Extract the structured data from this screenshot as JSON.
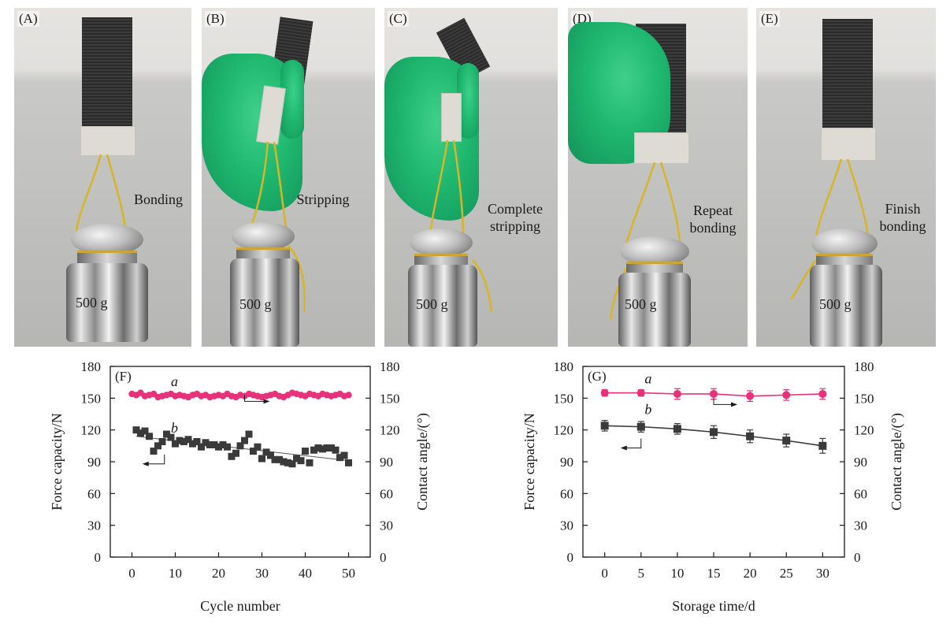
{
  "panels": [
    {
      "tag": "(A)",
      "caption": "Bonding",
      "mass": "500 g"
    },
    {
      "tag": "(B)",
      "caption": "Stripping",
      "mass": "500 g"
    },
    {
      "tag": "(C)",
      "caption": "Complete stripping",
      "mass": "500 g"
    },
    {
      "tag": "(D)",
      "caption": "Repeat bonding",
      "mass": "500 g"
    },
    {
      "tag": "(E)",
      "caption": "Finish bonding",
      "mass": "500 g"
    }
  ],
  "colors": {
    "series_a": "#e8317a",
    "series_b": "#3a3a3a",
    "glove": "#22b672",
    "string": "#d8b527"
  },
  "chart_data": [
    {
      "type": "scatter",
      "tag": "(F)",
      "xlabel": "Cycle number",
      "ylabel": "Force capacity/N",
      "y2label": "Contact angle/(°)",
      "xlim": [
        -5,
        55
      ],
      "ylim": [
        0,
        180
      ],
      "y2lim": [
        0,
        180
      ],
      "xticks": [
        0,
        10,
        20,
        30,
        40,
        50
      ],
      "yticks": [
        0,
        30,
        60,
        90,
        120,
        150,
        180
      ],
      "series": [
        {
          "name": "a",
          "axis": "right",
          "marker": "circle",
          "x": [
            0,
            1,
            2,
            3,
            4,
            5,
            6,
            7,
            8,
            9,
            10,
            11,
            12,
            13,
            14,
            15,
            16,
            17,
            18,
            19,
            20,
            21,
            22,
            23,
            24,
            25,
            26,
            27,
            28,
            29,
            30,
            31,
            32,
            33,
            34,
            35,
            36,
            37,
            38,
            39,
            40,
            41,
            42,
            43,
            44,
            45,
            46,
            47,
            48,
            49,
            50
          ],
          "y": [
            154,
            153,
            155,
            152,
            153,
            154,
            151,
            152,
            153,
            154,
            152,
            153,
            152,
            151,
            153,
            154,
            152,
            153,
            151,
            152,
            153,
            152,
            154,
            152,
            151,
            153,
            152,
            154,
            153,
            152,
            151,
            152,
            153,
            154,
            152,
            151,
            153,
            155,
            154,
            153,
            152,
            154,
            153,
            152,
            154,
            153,
            152,
            153,
            154,
            152,
            153
          ]
        },
        {
          "name": "b",
          "axis": "left",
          "marker": "square",
          "x": [
            1,
            2,
            3,
            4,
            5,
            6,
            7,
            8,
            9,
            10,
            11,
            12,
            13,
            14,
            15,
            16,
            17,
            18,
            19,
            20,
            21,
            22,
            23,
            24,
            25,
            26,
            27,
            28,
            29,
            30,
            31,
            32,
            33,
            34,
            35,
            36,
            37,
            38,
            39,
            40,
            41,
            42,
            43,
            44,
            45,
            46,
            47,
            48,
            49,
            50
          ],
          "y": [
            120,
            117,
            119,
            114,
            100,
            105,
            109,
            116,
            113,
            107,
            110,
            109,
            111,
            107,
            109,
            104,
            108,
            106,
            106,
            104,
            106,
            104,
            95,
            98,
            105,
            110,
            116,
            100,
            104,
            93,
            99,
            96,
            92,
            92,
            90,
            89,
            88,
            93,
            91,
            100,
            89,
            101,
            103,
            102,
            103,
            103,
            101,
            94,
            96,
            89
          ],
          "fit": {
            "x": [
              1,
              50
            ],
            "y": [
              114,
              91
            ]
          }
        }
      ],
      "annotations": [
        {
          "text": "a",
          "series": "a"
        },
        {
          "text": "b",
          "series": "b"
        }
      ]
    },
    {
      "type": "line",
      "tag": "(G)",
      "xlabel": "Storage time/d",
      "ylabel": "Force capacity/N",
      "y2label": "Contact angle/(°)",
      "xlim": [
        -3,
        33
      ],
      "ylim": [
        0,
        180
      ],
      "y2lim": [
        0,
        180
      ],
      "xticks": [
        0,
        5,
        10,
        15,
        20,
        25,
        30
      ],
      "yticks": [
        0,
        30,
        60,
        90,
        120,
        150,
        180
      ],
      "series": [
        {
          "name": "a",
          "axis": "right",
          "marker": "circle",
          "x": [
            0,
            5,
            10,
            15,
            20,
            25,
            30
          ],
          "y": [
            155,
            155,
            154,
            154,
            152,
            153,
            154
          ],
          "err": [
            3,
            3,
            5,
            5,
            5,
            5,
            5
          ]
        },
        {
          "name": "b",
          "axis": "left",
          "marker": "square",
          "x": [
            0,
            5,
            10,
            15,
            20,
            25,
            30
          ],
          "y": [
            124,
            123,
            121,
            118,
            114,
            110,
            105
          ],
          "err": [
            5,
            5,
            5,
            6,
            6,
            6,
            7
          ]
        }
      ],
      "annotations": [
        {
          "text": "a",
          "series": "a"
        },
        {
          "text": "b",
          "series": "b"
        }
      ]
    }
  ]
}
